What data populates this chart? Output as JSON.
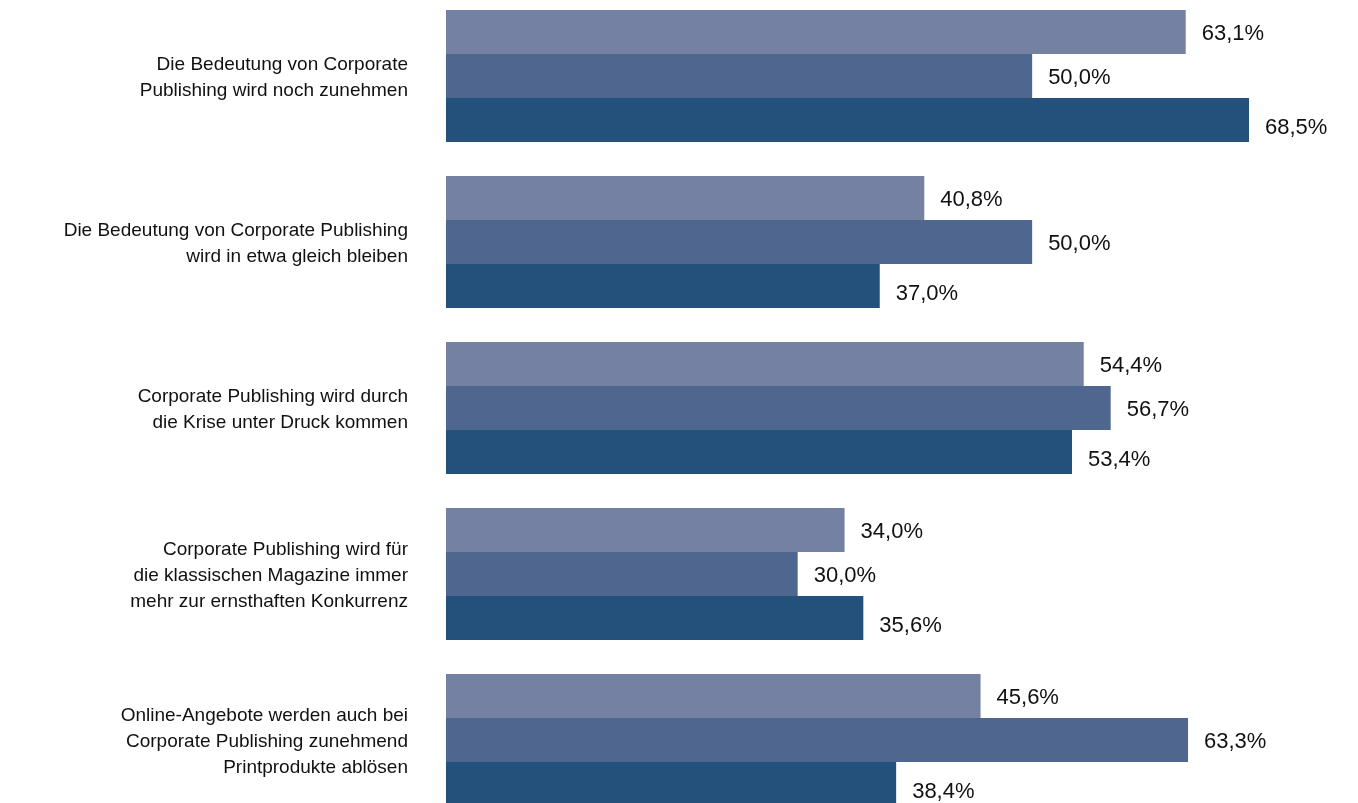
{
  "chart_data": {
    "type": "bar",
    "orientation": "horizontal",
    "categories": [
      "Die Bedeutung von Corporate\nPublishing wird noch zunehmen",
      "Die Bedeutung von Corporate Publishing\nwird in etwa gleich bleiben",
      "Corporate Publishing wird durch\ndie Krise unter Druck kommen",
      "Corporate Publishing wird für\ndie klassischen Magazine immer\nmehr zur ernsthaften Konkurrenz",
      "Online-Angebote werden auch bei\nCorporate Publishing zunehmend\nPrintprodukte ablösen"
    ],
    "series": [
      {
        "color": "#7581a2",
        "values": [
          63.1,
          40.8,
          54.4,
          34.0,
          45.6
        ],
        "value_labels": [
          "63,1%",
          "40,8%",
          "54,4%",
          "34,0%",
          "45,6%"
        ]
      },
      {
        "color": "#4f678e",
        "values": [
          50.0,
          50.0,
          56.7,
          30.0,
          63.3
        ],
        "value_labels": [
          "50,0%",
          "50,0%",
          "56,7%",
          "30,0%",
          "63,3%"
        ]
      },
      {
        "color": "#24517b",
        "values": [
          68.5,
          37.0,
          53.4,
          35.6,
          38.4
        ],
        "value_labels": [
          "68,5%",
          "37,0%",
          "53,4%",
          "35,6%",
          "38,4%"
        ]
      }
    ],
    "grid": false,
    "legend": false
  }
}
